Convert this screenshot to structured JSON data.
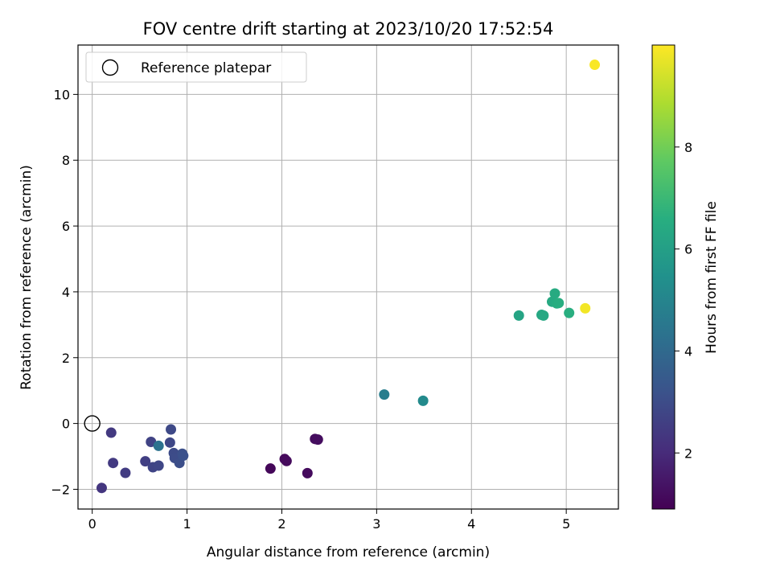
{
  "chart_data": {
    "type": "scatter",
    "title": "FOV centre drift starting at 2023/10/20 17:52:54",
    "xlabel": "Angular distance from reference (arcmin)",
    "ylabel": "Rotation from reference (arcmin)",
    "xlim": [
      -0.15,
      5.55
    ],
    "ylim": [
      -2.6,
      11.5
    ],
    "xticks": [
      0,
      1,
      2,
      3,
      4,
      5
    ],
    "yticks": [
      -2,
      0,
      2,
      4,
      6,
      8,
      10
    ],
    "xtick_labels": [
      "0",
      "1",
      "2",
      "3",
      "4",
      "5"
    ],
    "ytick_labels": [
      "−2",
      "0",
      "2",
      "4",
      "6",
      "8",
      "10"
    ],
    "grid": true,
    "legend": {
      "placement": "upper-left",
      "entries": [
        "Reference platepar"
      ]
    },
    "reference_point": {
      "x": 0,
      "y": 0,
      "label": "Reference platepar"
    },
    "colorbar": {
      "label": "Hours from first FF file",
      "colormap": "viridis",
      "range": [
        0.9,
        10.0
      ],
      "ticks": [
        2,
        4,
        6,
        8
      ],
      "tick_labels": [
        "2",
        "4",
        "6",
        "8"
      ]
    },
    "points": [
      {
        "x": 1.88,
        "y": -1.37,
        "c": 1.05
      },
      {
        "x": 2.03,
        "y": -1.08,
        "c": 1.1
      },
      {
        "x": 2.05,
        "y": -1.14,
        "c": 1.12
      },
      {
        "x": 2.27,
        "y": -1.51,
        "c": 1.15
      },
      {
        "x": 2.35,
        "y": -0.47,
        "c": 1.2
      },
      {
        "x": 2.38,
        "y": -0.49,
        "c": 1.22
      },
      {
        "x": 0.1,
        "y": -1.96,
        "c": 2.3
      },
      {
        "x": 0.2,
        "y": -0.28,
        "c": 2.4
      },
      {
        "x": 0.22,
        "y": -1.2,
        "c": 2.45
      },
      {
        "x": 0.35,
        "y": -1.5,
        "c": 2.5
      },
      {
        "x": 0.56,
        "y": -1.15,
        "c": 2.6
      },
      {
        "x": 0.62,
        "y": -0.56,
        "c": 2.7
      },
      {
        "x": 0.64,
        "y": -1.33,
        "c": 2.75
      },
      {
        "x": 0.7,
        "y": -1.28,
        "c": 2.8
      },
      {
        "x": 0.82,
        "y": -0.58,
        "c": 2.85
      },
      {
        "x": 0.83,
        "y": -0.18,
        "c": 2.9
      },
      {
        "x": 0.86,
        "y": -0.9,
        "c": 2.95
      },
      {
        "x": 0.87,
        "y": -1.05,
        "c": 3.0
      },
      {
        "x": 0.92,
        "y": -1.2,
        "c": 3.05
      },
      {
        "x": 0.95,
        "y": -0.92,
        "c": 3.1
      },
      {
        "x": 0.96,
        "y": -0.98,
        "c": 3.15
      },
      {
        "x": 0.7,
        "y": -0.68,
        "c": 4.3
      },
      {
        "x": 3.08,
        "y": 0.88,
        "c": 4.7
      },
      {
        "x": 3.49,
        "y": 0.69,
        "c": 5.2
      },
      {
        "x": 4.5,
        "y": 3.28,
        "c": 6.2
      },
      {
        "x": 4.74,
        "y": 3.3,
        "c": 6.3
      },
      {
        "x": 4.76,
        "y": 3.28,
        "c": 6.35
      },
      {
        "x": 4.85,
        "y": 3.7,
        "c": 6.4
      },
      {
        "x": 4.88,
        "y": 3.95,
        "c": 6.45
      },
      {
        "x": 4.9,
        "y": 3.65,
        "c": 6.5
      },
      {
        "x": 4.92,
        "y": 3.66,
        "c": 6.55
      },
      {
        "x": 5.03,
        "y": 3.36,
        "c": 6.6
      },
      {
        "x": 5.2,
        "y": 3.5,
        "c": 9.85
      },
      {
        "x": 5.3,
        "y": 10.9,
        "c": 9.95
      }
    ]
  }
}
